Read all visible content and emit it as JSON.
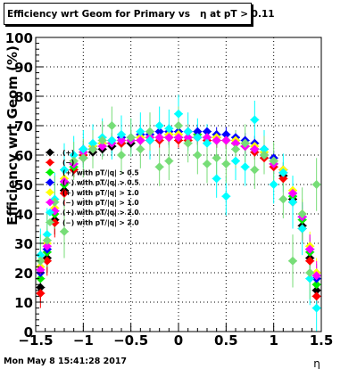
{
  "title": "Efficiency wrt Geom for Primary vs   η at pT > 0.11",
  "footer_date": "Mon May  8 15:41:28 2017",
  "chart_data": {
    "type": "scatter",
    "xlabel": "η",
    "ylabel": "Efficiency wrt Geom (%)",
    "xlim": [
      -1.5,
      1.5
    ],
    "ylim": [
      0,
      100
    ],
    "x_ticks": [
      "−1.5",
      "−1",
      "−0.5",
      "0",
      "0.5",
      "1",
      "1.5"
    ],
    "y_ticks": [
      "0",
      "10",
      "20",
      "30",
      "40",
      "50",
      "60",
      "70",
      "80",
      "90",
      "100"
    ],
    "grid": true,
    "legend_position": "left-middle",
    "x": [
      -1.45,
      -1.38,
      -1.3,
      -1.2,
      -1.1,
      -1.0,
      -0.9,
      -0.8,
      -0.7,
      -0.6,
      -0.5,
      -0.4,
      -0.3,
      -0.2,
      -0.1,
      0.0,
      0.1,
      0.2,
      0.3,
      0.4,
      0.5,
      0.6,
      0.7,
      0.8,
      0.9,
      1.0,
      1.1,
      1.2,
      1.3,
      1.38,
      1.45
    ],
    "series": [
      {
        "name": "(+)",
        "color": "#000000",
        "y": [
          15,
          25,
          38,
          48,
          55,
          59,
          61,
          62,
          63,
          64,
          64,
          65,
          65,
          66,
          66,
          66,
          66,
          66,
          66,
          65,
          65,
          64,
          63,
          62,
          60,
          57,
          53,
          45,
          36,
          25,
          14
        ]
      },
      {
        "name": "(−)",
        "color": "#ff0000",
        "y": [
          13,
          24,
          37,
          47,
          55,
          60,
          62,
          63,
          64,
          64,
          65,
          65,
          66,
          65,
          66,
          65,
          65,
          66,
          65,
          65,
          65,
          64,
          63,
          61,
          59,
          56,
          52,
          44,
          35,
          24,
          12
        ]
      },
      {
        "name": "(+) with pT/|q| > 0.5",
        "color": "#00ee00",
        "y": [
          18,
          27,
          40,
          50,
          56,
          61,
          62,
          64,
          64,
          65,
          65,
          66,
          66,
          66,
          67,
          66,
          66,
          67,
          66,
          66,
          65,
          65,
          64,
          62,
          60,
          58,
          54,
          46,
          38,
          27,
          16
        ]
      },
      {
        "name": "(−) with pT/|q| > 0.5",
        "color": "#0000ff",
        "y": [
          20,
          28,
          41,
          51,
          57,
          62,
          63,
          64,
          65,
          66,
          66,
          67,
          67,
          68,
          68,
          68,
          68,
          68,
          68,
          67,
          67,
          66,
          65,
          64,
          62,
          59,
          55,
          47,
          39,
          28,
          18
        ]
      },
      {
        "name": "(+) with pT/|q| > 1.0",
        "color": "#ffff00",
        "y": [
          22,
          30,
          42,
          52,
          58,
          61,
          63,
          64,
          65,
          65,
          66,
          66,
          66,
          66,
          67,
          67,
          66,
          66,
          66,
          66,
          65,
          65,
          64,
          63,
          61,
          58,
          55,
          48,
          40,
          29,
          20
        ]
      },
      {
        "name": "(−) with pT/|q| > 1.0",
        "color": "#ff00ff",
        "y": [
          21,
          29,
          41,
          51,
          57,
          61,
          62,
          63,
          64,
          65,
          65,
          65,
          66,
          66,
          66,
          66,
          66,
          66,
          66,
          65,
          65,
          64,
          63,
          62,
          60,
          57,
          54,
          47,
          39,
          28,
          19
        ]
      },
      {
        "name": "(+) with pT/|q| > 2.0",
        "color": "#00ffff",
        "y": [
          26,
          33,
          45,
          55,
          60,
          62,
          64,
          66,
          65,
          67,
          66,
          68,
          65,
          70,
          69,
          74,
          68,
          66,
          64,
          52,
          46,
          58,
          56,
          72,
          62,
          50,
          54,
          44,
          35,
          18,
          8
        ]
      },
      {
        "name": "(−) with pT/|q| > 2.0",
        "color": "#77dd77",
        "y": [
          24,
          31,
          44,
          34,
          58,
          59,
          62,
          65,
          70,
          60,
          66,
          62,
          68,
          56,
          58,
          70,
          64,
          60,
          57,
          59,
          57,
          62,
          64,
          55,
          60,
          58,
          45,
          24,
          40,
          20,
          50
        ]
      }
    ]
  }
}
